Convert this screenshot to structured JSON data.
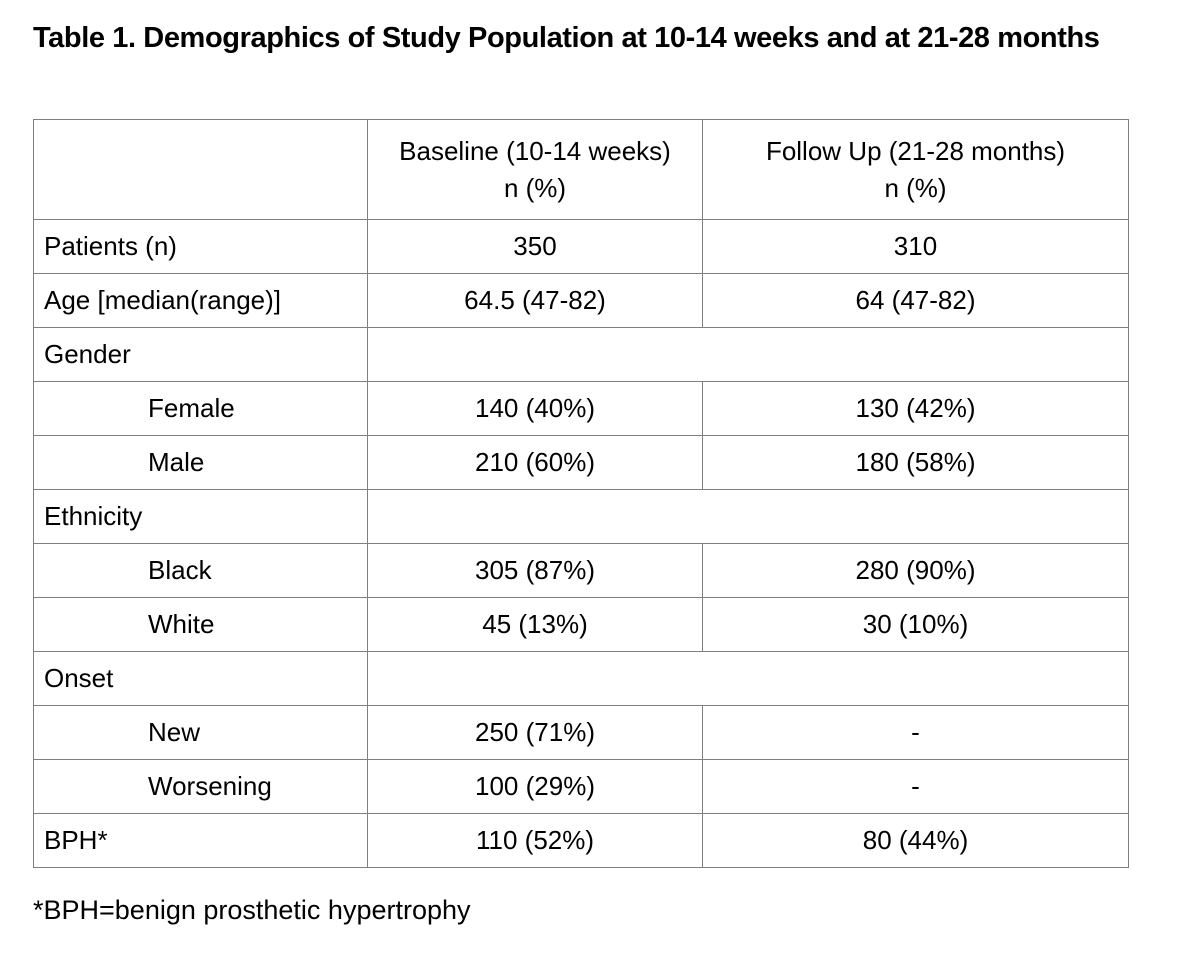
{
  "page": {
    "title": "Table 1. Demographics of Study Population at 10-14 weeks and at 21-28 months",
    "footnote": "*BPH=benign prosthetic hypertrophy"
  },
  "table": {
    "columns": [
      {
        "label": "",
        "sublabel": ""
      },
      {
        "label": "Baseline (10-14 weeks)",
        "sublabel": "n (%)"
      },
      {
        "label": "Follow Up (21-28 months)",
        "sublabel": "n (%)"
      }
    ],
    "rows": [
      {
        "label": "Patients (n)",
        "indent": false,
        "merged": false,
        "baseline": "350",
        "followup": "310"
      },
      {
        "label": "Age [median(range)]",
        "indent": false,
        "merged": false,
        "baseline": "64.5 (47-82)",
        "followup": "64 (47-82)"
      },
      {
        "label": "Gender",
        "indent": false,
        "merged": true,
        "baseline": "",
        "followup": ""
      },
      {
        "label": "Female",
        "indent": true,
        "merged": false,
        "baseline": "140 (40%)",
        "followup": "130 (42%)"
      },
      {
        "label": "Male",
        "indent": true,
        "merged": false,
        "baseline": "210 (60%)",
        "followup": "180 (58%)"
      },
      {
        "label": "Ethnicity",
        "indent": false,
        "merged": true,
        "baseline": "",
        "followup": ""
      },
      {
        "label": "Black",
        "indent": true,
        "merged": false,
        "baseline": "305 (87%)",
        "followup": "280 (90%)"
      },
      {
        "label": "White",
        "indent": true,
        "merged": false,
        "baseline": "45 (13%)",
        "followup": "30 (10%)"
      },
      {
        "label": "Onset",
        "indent": false,
        "merged": true,
        "baseline": "",
        "followup": ""
      },
      {
        "label": "New",
        "indent": true,
        "merged": false,
        "baseline": "250 (71%)",
        "followup": "-"
      },
      {
        "label": "Worsening",
        "indent": true,
        "merged": false,
        "baseline": "100 (29%)",
        "followup": "-"
      },
      {
        "label": "BPH*",
        "indent": false,
        "merged": false,
        "baseline": "110 (52%)",
        "followup": "80 (44%)"
      }
    ]
  },
  "colors": {
    "border": "#7f7f7f",
    "text": "#000000",
    "background": "#ffffff"
  }
}
